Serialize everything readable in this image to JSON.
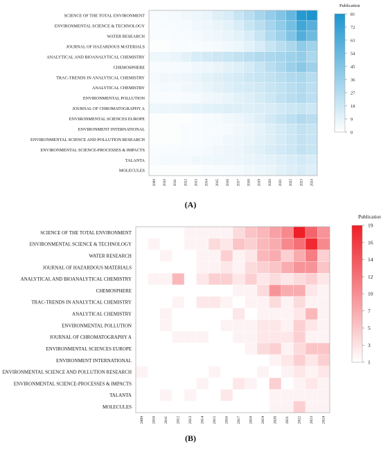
{
  "panels": [
    {
      "caption": "(A)",
      "chart_data": {
        "type": "heatmap",
        "title": "",
        "legend_title": "Publication",
        "x": [
          "2009",
          "2010",
          "2011",
          "2012",
          "2013",
          "2014",
          "2015",
          "2016",
          "2017",
          "2018",
          "2019",
          "2020",
          "2021",
          "2022",
          "2023",
          "2024"
        ],
        "y": [
          "SCIENCE OF THE TOTAL ENVIRONMENT",
          "ENVIRONMENTAL SCIENCE & TECHNOLOGY",
          "WATER RESEARCH",
          "JOURNAL OF HAZARDOUS MATERIALS",
          "ANALYTICAL AND BIOANALYTICAL CHEMISTRY",
          "CHEMOSPHERE",
          "TRAC-TRENDS IN ANALYTICAL CHEMISTRY",
          "ANALYTICAL CHEMISTRY",
          "ENVIRONMENTAL POLLUTION",
          "JOURNAL OF CHROMATOGRAPHY A",
          "ENVIRONMENTAL SCIENCES EUROPE",
          "ENVIRONMENT INTERNATIONAL",
          "ENVIRONMENTAL SCIENCE AND POLLUTION RESEARCH",
          "ENVIRONMENTAL SCIENCE-PROCESSES & IMPACTS",
          "TALANTA",
          "MOLECULES"
        ],
        "values": [
          [
            3,
            3,
            4,
            5,
            6,
            8,
            12,
            14,
            20,
            25,
            32,
            38,
            45,
            55,
            78,
            81
          ],
          [
            2,
            3,
            3,
            4,
            5,
            6,
            8,
            10,
            14,
            20,
            25,
            32,
            40,
            50,
            68,
            60
          ],
          [
            2,
            2,
            3,
            3,
            4,
            5,
            6,
            8,
            10,
            14,
            20,
            28,
            35,
            45,
            62,
            52
          ],
          [
            1,
            1,
            2,
            2,
            2,
            3,
            4,
            5,
            7,
            10,
            14,
            20,
            25,
            30,
            40,
            34
          ],
          [
            6,
            7,
            8,
            10,
            14,
            16,
            18,
            20,
            22,
            25,
            28,
            30,
            32,
            35,
            38,
            30
          ],
          [
            2,
            3,
            3,
            4,
            5,
            6,
            8,
            10,
            12,
            15,
            20,
            25,
            30,
            36,
            42,
            35
          ],
          [
            4,
            5,
            5,
            6,
            8,
            10,
            12,
            14,
            15,
            18,
            20,
            22,
            25,
            28,
            30,
            26
          ],
          [
            3,
            4,
            4,
            5,
            6,
            8,
            10,
            12,
            14,
            15,
            17,
            20,
            22,
            25,
            28,
            24
          ],
          [
            2,
            2,
            2,
            3,
            4,
            5,
            6,
            8,
            10,
            12,
            15,
            18,
            22,
            25,
            28,
            24
          ],
          [
            6,
            7,
            7,
            8,
            9,
            10,
            11,
            12,
            12,
            12,
            13,
            14,
            16,
            18,
            20,
            18
          ],
          [
            1,
            1,
            1,
            1,
            2,
            3,
            4,
            5,
            7,
            9,
            12,
            16,
            20,
            24,
            28,
            25
          ],
          [
            1,
            1,
            1,
            2,
            2,
            3,
            3,
            4,
            5,
            7,
            9,
            12,
            15,
            18,
            22,
            20
          ],
          [
            1,
            1,
            1,
            2,
            2,
            3,
            4,
            5,
            6,
            8,
            10,
            12,
            15,
            18,
            22,
            20
          ],
          [
            2,
            2,
            2,
            3,
            3,
            4,
            5,
            6,
            7,
            9,
            11,
            14,
            16,
            18,
            22,
            20
          ],
          [
            3,
            4,
            4,
            4,
            5,
            5,
            6,
            6,
            7,
            8,
            9,
            10,
            12,
            14,
            16,
            14
          ],
          [
            1,
            1,
            1,
            1,
            1,
            2,
            2,
            3,
            4,
            5,
            6,
            8,
            10,
            12,
            14,
            12
          ]
        ],
        "scale": {
          "min": 0,
          "max": 81,
          "ticks": [
            "0",
            "9",
            "18",
            "27",
            "36",
            "45",
            "54",
            "63",
            "72",
            "81"
          ],
          "low_color": "#ffffff",
          "high_color": "#1e95cf"
        },
        "grid": true,
        "legend_position": "right"
      }
    },
    {
      "caption": "(B)",
      "chart_data": {
        "type": "heatmap",
        "title": "",
        "legend_title": "Publication",
        "x": [
          "2009",
          "2010",
          "2011",
          "2012",
          "2013",
          "2014",
          "2015",
          "2016",
          "2017",
          "2018",
          "2019",
          "2020",
          "2021",
          "2022",
          "2023",
          "2024"
        ],
        "y": [
          "SCIENCE OF THE TOTAL ENVIRONMENT",
          "ENVIRONMENTAL SCIENCE & TECHNOLOGY",
          "WATER RESEARCH",
          "JOURNAL OF HAZARDOUS MATERIALS",
          "ANALYTICAL AND BIOANALYTICAL CHEMISTRY",
          "CHEMOSPHERE",
          "TRAC-TRENDS IN ANALYTICAL CHEMISTRY",
          "ANALYTICAL CHEMISTRY",
          "ENVIRONMENTAL POLLUTION",
          "JOURNAL OF CHROMATOGRAPHY A",
          "ENVIRONMENTAL SCIENCES EUROPE",
          "ENVIRONMENT INTERNATIONAL",
          "ENVIRONMENTAL SCIENCE AND POLLUTION RESEARCH",
          "ENVIRONMENTAL SCIENCE-PROCESSES & IMPACTS",
          "TALANTA",
          "MOLECULES"
        ],
        "values": [
          [
            1,
            1,
            1,
            1,
            2,
            2,
            2,
            2,
            4,
            6,
            7,
            9,
            11,
            20,
            14,
            10
          ],
          [
            1,
            2,
            1,
            1,
            2,
            2,
            4,
            3,
            6,
            5,
            7,
            8,
            11,
            13,
            19,
            11
          ],
          [
            1,
            1,
            2,
            1,
            1,
            2,
            2,
            5,
            2,
            3,
            7,
            8,
            5,
            8,
            12,
            5
          ],
          [
            1,
            1,
            1,
            1,
            1,
            2,
            2,
            3,
            2,
            4,
            5,
            6,
            8,
            10,
            10,
            6
          ],
          [
            1,
            2,
            2,
            7,
            1,
            3,
            5,
            5,
            3,
            5,
            3,
            4,
            3,
            4,
            5,
            3
          ],
          [
            1,
            1,
            1,
            1,
            1,
            1,
            1,
            1,
            2,
            2,
            4,
            10,
            8,
            8,
            3,
            2
          ],
          [
            1,
            1,
            1,
            2,
            1,
            3,
            3,
            2,
            1,
            2,
            2,
            4,
            2,
            4,
            2,
            2
          ],
          [
            1,
            1,
            2,
            1,
            1,
            1,
            1,
            1,
            3,
            1,
            2,
            2,
            2,
            3,
            7,
            2
          ],
          [
            1,
            1,
            2,
            1,
            1,
            1,
            1,
            2,
            2,
            2,
            3,
            3,
            2,
            5,
            3,
            2
          ],
          [
            1,
            1,
            1,
            2,
            2,
            2,
            1,
            1,
            2,
            2,
            3,
            3,
            3,
            5,
            2,
            2
          ],
          [
            1,
            1,
            1,
            1,
            1,
            1,
            1,
            1,
            1,
            2,
            4,
            5,
            2,
            4,
            6,
            6
          ],
          [
            1,
            1,
            1,
            1,
            1,
            1,
            1,
            1,
            1,
            1,
            1,
            2,
            3,
            5,
            3,
            5
          ],
          [
            2,
            1,
            1,
            1,
            1,
            1,
            2,
            1,
            1,
            1,
            2,
            1,
            2,
            3,
            2,
            3
          ],
          [
            1,
            1,
            1,
            1,
            1,
            2,
            1,
            1,
            3,
            2,
            1,
            5,
            1,
            2,
            3,
            2
          ],
          [
            1,
            1,
            2,
            1,
            2,
            1,
            1,
            3,
            1,
            1,
            1,
            2,
            2,
            2,
            2,
            2
          ],
          [
            1,
            1,
            1,
            1,
            1,
            1,
            1,
            1,
            1,
            1,
            1,
            2,
            2,
            5,
            2,
            2
          ]
        ],
        "scale": {
          "min": 1,
          "max": 20,
          "ticks": [
            "1",
            "3",
            "5",
            "7",
            "10",
            "12",
            "14",
            "16",
            "19"
          ],
          "low_color": "#ffffff",
          "high_color": "#ef1e27"
        },
        "grid": true,
        "legend_position": "right"
      }
    }
  ]
}
